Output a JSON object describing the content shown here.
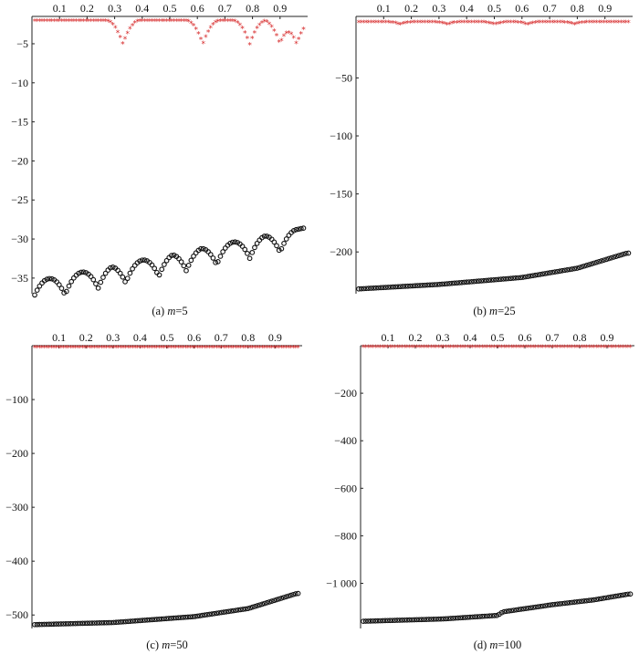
{
  "chart_data": [
    {
      "id": "a",
      "type": "scatter",
      "caption_prefix": "(a) ",
      "caption_var": "m",
      "caption_value": "=5",
      "x_ticks": [
        0.1,
        0.2,
        0.3,
        0.4,
        0.5,
        0.6,
        0.7,
        0.8,
        0.9
      ],
      "x_tick_labels": [
        "0.1",
        "0.2",
        "0.3",
        "0.4",
        "0.5",
        "0.6",
        "0.7",
        "0.8",
        "0.9"
      ],
      "xlim": [
        0,
        1
      ],
      "y_ticks": [
        -5,
        -10,
        -15,
        -20,
        -25,
        -30,
        -35
      ],
      "y_tick_labels": [
        "−5",
        "−10",
        "−15",
        "−20",
        "−25",
        "−30",
        "−35"
      ],
      "ylim": [
        -37,
        -1.5
      ],
      "upper_curve": {
        "color": "#d62728",
        "marker": "*",
        "base": -2.1,
        "base_slope": 0,
        "dips": [
          0.33,
          0.62,
          0.79,
          0.9,
          0.96
        ],
        "dip_depth": 3.0
      },
      "lower_curve": {
        "color": "#111111",
        "marker": "o",
        "base": -35.5,
        "base_slope": 7.0,
        "dips": [
          0.0,
          0.12,
          0.24,
          0.34,
          0.46,
          0.56,
          0.67,
          0.79,
          0.9
        ],
        "dip_depth": 2.5
      }
    },
    {
      "id": "b",
      "type": "scatter",
      "caption_prefix": "(b) ",
      "caption_var": "m",
      "caption_value": "=25",
      "x_ticks": [
        0.1,
        0.2,
        0.3,
        0.4,
        0.5,
        0.6,
        0.7,
        0.8,
        0.9
      ],
      "x_tick_labels": [
        "0.1",
        "0.2",
        "0.3",
        "0.4",
        "0.5",
        "0.6",
        "0.7",
        "0.8",
        "0.9"
      ],
      "xlim": [
        0,
        1
      ],
      "y_ticks": [
        -50,
        -100,
        -150,
        -200
      ],
      "y_tick_labels": [
        "−50",
        "−100",
        "−150",
        "−200"
      ],
      "ylim": [
        -236,
        3
      ],
      "upper_curve": {
        "color": "#d62728",
        "marker": "*",
        "base": -2,
        "base_slope": 0,
        "dips": [
          0.16,
          0.33,
          0.5,
          0.62,
          0.79
        ],
        "dip_depth": 2.0
      },
      "lower_curve": {
        "color": "#111111",
        "marker": "o",
        "base": -232,
        "base_slope": 0,
        "curve": [
          [
            0,
            -232
          ],
          [
            0.3,
            -228
          ],
          [
            0.6,
            -222
          ],
          [
            0.8,
            -214
          ],
          [
            0.98,
            -201
          ]
        ],
        "dips": [],
        "dip_depth": 0
      }
    },
    {
      "id": "c",
      "type": "scatter",
      "caption_prefix": "(c) ",
      "caption_var": "m",
      "caption_value": "=50",
      "x_ticks": [
        0.1,
        0.2,
        0.3,
        0.4,
        0.5,
        0.6,
        0.7,
        0.8,
        0.9
      ],
      "x_tick_labels": [
        "0.1",
        "0.2",
        "0.3",
        "0.4",
        "0.5",
        "0.6",
        "0.7",
        "0.8",
        "0.9"
      ],
      "xlim": [
        0,
        1
      ],
      "y_ticks": [
        -100,
        -200,
        -300,
        -400,
        -500
      ],
      "y_tick_labels": [
        "−100",
        "−200",
        "−300",
        "−400",
        "−500"
      ],
      "ylim": [
        -525,
        0
      ],
      "upper_curve": {
        "color": "#d62728",
        "marker": "*",
        "base": -3,
        "base_slope": 0,
        "dips": [],
        "dip_depth": 0
      },
      "lower_curve": {
        "color": "#111111",
        "marker": "o",
        "base": -518,
        "base_slope": 0,
        "curve": [
          [
            0,
            -518
          ],
          [
            0.3,
            -514
          ],
          [
            0.6,
            -503
          ],
          [
            0.8,
            -488
          ],
          [
            0.98,
            -460
          ]
        ],
        "dips": [],
        "dip_depth": 0
      }
    },
    {
      "id": "d",
      "type": "scatter",
      "caption_prefix": "(d) ",
      "caption_var": "m",
      "caption_value": "=100",
      "x_ticks": [
        0.1,
        0.2,
        0.3,
        0.4,
        0.5,
        0.6,
        0.7,
        0.8,
        0.9
      ],
      "x_tick_labels": [
        "0.1",
        "0.2",
        "0.3",
        "0.4",
        "0.5",
        "0.6",
        "0.7",
        "0.8",
        "0.9"
      ],
      "xlim": [
        0,
        1
      ],
      "y_ticks": [
        -200,
        -400,
        -600,
        -800,
        -1000
      ],
      "y_tick_labels": [
        "−200",
        "−400",
        "−600",
        "−800",
        "−1 000"
      ],
      "ylim": [
        -1190,
        0
      ],
      "upper_curve": {
        "color": "#d62728",
        "marker": "*",
        "base": -5,
        "base_slope": 0,
        "dips": [],
        "dip_depth": 0
      },
      "lower_curve": {
        "color": "#111111",
        "marker": "o",
        "base": -1160,
        "base_slope": 0,
        "curve": [
          [
            0,
            -1160
          ],
          [
            0.3,
            -1150
          ],
          [
            0.5,
            -1135
          ],
          [
            0.52,
            -1120
          ],
          [
            0.7,
            -1090
          ],
          [
            0.85,
            -1070
          ],
          [
            0.98,
            -1045
          ]
        ],
        "dips": [],
        "dip_depth": 0
      }
    }
  ]
}
